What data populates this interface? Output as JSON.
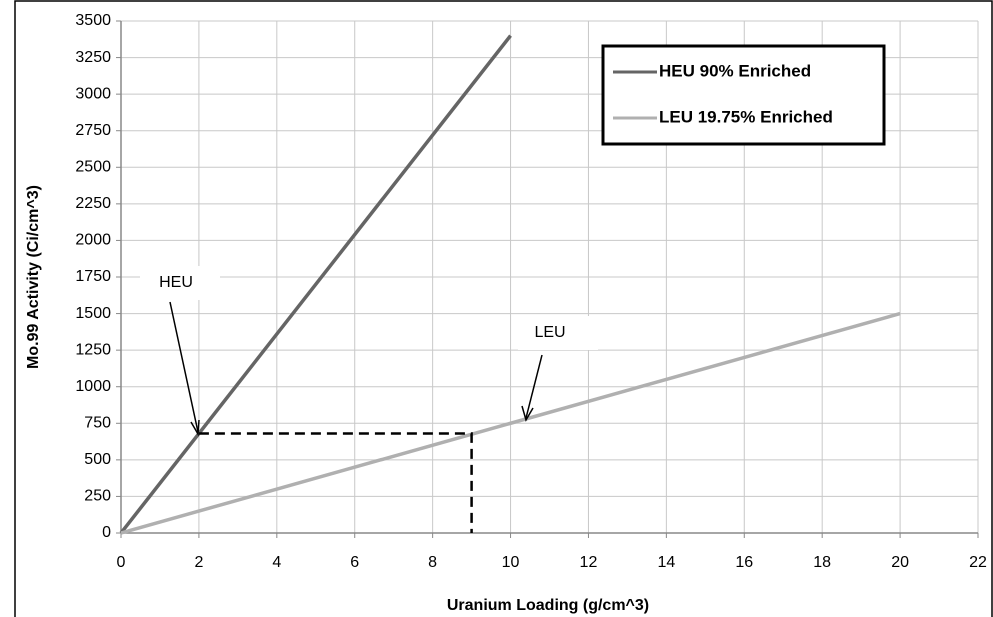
{
  "chart_data": {
    "type": "line",
    "xlabel": "Uranium Loading (g/cm^3)",
    "ylabel": "Mo.99 Activity (Ci/cm^3)",
    "xlim": [
      0,
      22
    ],
    "xticks": [
      0,
      2,
      4,
      6,
      8,
      10,
      12,
      14,
      16,
      18,
      20,
      22
    ],
    "ylim": [
      0,
      3500
    ],
    "yticks": [
      0,
      250,
      500,
      750,
      1000,
      1250,
      1500,
      1750,
      2000,
      2250,
      2500,
      2750,
      3000,
      3250,
      3500
    ],
    "grid": true,
    "legend": "upper right",
    "series": [
      {
        "name": "HEU 90% Enriched",
        "color": "#656565",
        "x": [
          0,
          10
        ],
        "values": [
          0,
          3400
        ]
      },
      {
        "name": "LEU 19.75% Enriched",
        "color": "#b0b0b0",
        "x": [
          0,
          20
        ],
        "values": [
          0,
          1500
        ]
      }
    ],
    "guide": {
      "x": [
        2,
        9,
        9
      ],
      "values": [
        680,
        680,
        0
      ]
    },
    "annotations": [
      "HEU",
      "LEU"
    ]
  }
}
